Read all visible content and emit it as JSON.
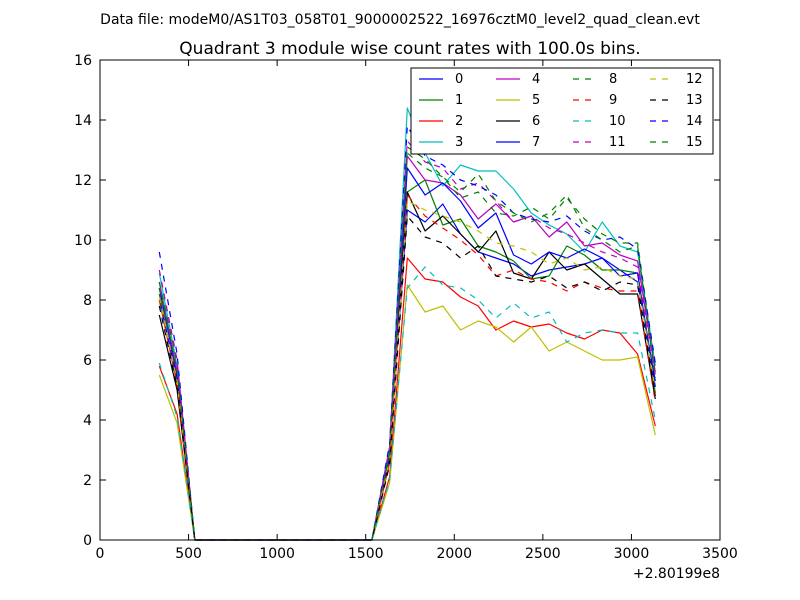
{
  "chart_data": {
    "type": "line",
    "suptitle": "Data file: modeM0/AS1T03_058T01_9000002522_16976cztM0_level2_quad_clean.evt",
    "title": "Quadrant 3 module wise count rates with 100.0s bins.",
    "xlabel": "",
    "ylabel": "",
    "x_offset_label": "+2.80199e8",
    "xlim": [
      0,
      3500
    ],
    "ylim": [
      0,
      16
    ],
    "xticks": [
      0,
      500,
      1000,
      1500,
      2000,
      2500,
      3000,
      3500
    ],
    "yticks": [
      0,
      2,
      4,
      6,
      8,
      10,
      12,
      14,
      16
    ],
    "grid": false,
    "legend_position": "top-right",
    "x": [
      335,
      435,
      535,
      635,
      735,
      835,
      935,
      1035,
      1135,
      1235,
      1335,
      1435,
      1535,
      1635,
      1735,
      1835,
      1935,
      2035,
      2135,
      2235,
      2335,
      2435,
      2535,
      2635,
      2735,
      2835,
      2935,
      3035,
      3135
    ],
    "series": [
      {
        "name": "0",
        "color": "#0000ff",
        "style": "solid",
        "values": [
          8.4,
          5.5,
          0,
          0,
          0,
          0,
          0,
          0,
          0,
          0,
          0,
          0,
          0,
          2.8,
          11.0,
          10.6,
          11.2,
          10.2,
          9.6,
          9.4,
          9.2,
          8.8,
          9.0,
          9.1,
          9.2,
          9.4,
          9.0,
          8.6,
          5.3
        ]
      },
      {
        "name": "1",
        "color": "#008000",
        "style": "solid",
        "values": [
          8.2,
          5.2,
          0,
          0,
          0,
          0,
          0,
          0,
          0,
          0,
          0,
          0,
          0,
          2.7,
          11.6,
          12.0,
          10.5,
          10.7,
          9.8,
          9.6,
          9.3,
          8.7,
          8.8,
          9.8,
          9.5,
          9.0,
          9.0,
          8.9,
          4.9
        ]
      },
      {
        "name": "2",
        "color": "#ff0000",
        "style": "solid",
        "values": [
          5.8,
          4.2,
          0,
          0,
          0,
          0,
          0,
          0,
          0,
          0,
          0,
          0,
          0,
          2.1,
          9.4,
          8.7,
          8.6,
          8.1,
          7.8,
          7.0,
          7.3,
          7.1,
          7.2,
          6.9,
          6.7,
          7.0,
          6.9,
          6.2,
          3.8
        ]
      },
      {
        "name": "3",
        "color": "#00bfbf",
        "style": "solid",
        "values": [
          8.9,
          5.8,
          0,
          0,
          0,
          0,
          0,
          0,
          0,
          0,
          0,
          0,
          0,
          3.1,
          14.4,
          12.9,
          11.8,
          12.5,
          12.3,
          12.3,
          11.7,
          10.9,
          10.5,
          10.2,
          9.6,
          10.6,
          9.8,
          9.6,
          5.8
        ]
      },
      {
        "name": "4",
        "color": "#bf00bf",
        "style": "solid",
        "values": [
          8.6,
          5.6,
          0,
          0,
          0,
          0,
          0,
          0,
          0,
          0,
          0,
          0,
          0,
          2.9,
          12.8,
          12.0,
          11.9,
          11.5,
          10.7,
          11.2,
          10.6,
          10.8,
          10.1,
          10.6,
          9.8,
          9.9,
          9.5,
          9.3,
          5.6
        ]
      },
      {
        "name": "5",
        "color": "#bfbf00",
        "style": "solid",
        "values": [
          5.5,
          3.9,
          0,
          0,
          0,
          0,
          0,
          0,
          0,
          0,
          0,
          0,
          0,
          1.9,
          8.5,
          7.6,
          7.8,
          7.0,
          7.3,
          7.1,
          6.6,
          7.1,
          6.3,
          6.6,
          6.3,
          6.0,
          6.0,
          6.1,
          3.5
        ]
      },
      {
        "name": "6",
        "color": "#000000",
        "style": "solid",
        "values": [
          7.5,
          5.0,
          0,
          0,
          0,
          0,
          0,
          0,
          0,
          0,
          0,
          0,
          0,
          2.6,
          11.6,
          10.3,
          10.8,
          10.2,
          9.6,
          10.3,
          8.9,
          8.7,
          9.6,
          9.0,
          9.2,
          8.7,
          8.2,
          8.2,
          4.7
        ]
      },
      {
        "name": "7",
        "color": "#0000ff",
        "style": "solid",
        "values": [
          8.0,
          5.4,
          0,
          0,
          0,
          0,
          0,
          0,
          0,
          0,
          0,
          0,
          0,
          2.8,
          12.4,
          11.5,
          11.9,
          11.3,
          10.4,
          10.9,
          9.5,
          9.2,
          9.6,
          9.4,
          9.7,
          9.4,
          8.8,
          8.9,
          5.1
        ]
      },
      {
        "name": "8",
        "color": "#008000",
        "style": "dashed",
        "values": [
          8.6,
          5.9,
          0,
          0,
          0,
          0,
          0,
          0,
          0,
          0,
          0,
          0,
          0,
          3.0,
          12.9,
          12.4,
          12.1,
          11.4,
          11.6,
          10.9,
          10.8,
          11.1,
          10.7,
          11.4,
          10.7,
          10.2,
          9.9,
          9.9,
          5.7
        ]
      },
      {
        "name": "9",
        "color": "#ff0000",
        "style": "dashed",
        "values": [
          8.0,
          5.2,
          0,
          0,
          0,
          0,
          0,
          0,
          0,
          0,
          0,
          0,
          0,
          2.6,
          11.5,
          10.8,
          10.4,
          10.0,
          9.5,
          8.8,
          9.0,
          8.7,
          8.6,
          8.3,
          8.6,
          8.4,
          8.3,
          8.3,
          4.6
        ]
      },
      {
        "name": "10",
        "color": "#00bfbf",
        "style": "dashed",
        "values": [
          5.9,
          4.1,
          0,
          0,
          0,
          0,
          0,
          0,
          0,
          0,
          0,
          0,
          0,
          2.0,
          8.4,
          9.1,
          8.5,
          8.4,
          8.0,
          7.4,
          7.9,
          7.4,
          7.6,
          6.6,
          6.9,
          7.0,
          6.9,
          6.9,
          4.0
        ]
      },
      {
        "name": "11",
        "color": "#bf00bf",
        "style": "dashed",
        "values": [
          9.0,
          6.0,
          0,
          0,
          0,
          0,
          0,
          0,
          0,
          0,
          0,
          0,
          0,
          3.1,
          13.3,
          12.6,
          12.4,
          11.7,
          11.9,
          11.3,
          10.6,
          10.8,
          10.4,
          10.2,
          9.9,
          9.6,
          9.4,
          9.1,
          5.5
        ]
      },
      {
        "name": "12",
        "color": "#bfbf00",
        "style": "dashed",
        "values": [
          8.1,
          5.3,
          0,
          0,
          0,
          0,
          0,
          0,
          0,
          0,
          0,
          0,
          0,
          2.7,
          11.3,
          11.0,
          10.8,
          10.6,
          10.3,
          9.9,
          9.8,
          9.6,
          9.2,
          9.4,
          9.0,
          9.1,
          8.8,
          8.7,
          5.0
        ]
      },
      {
        "name": "13",
        "color": "#000000",
        "style": "dashed",
        "values": [
          7.8,
          5.1,
          0,
          0,
          0,
          0,
          0,
          0,
          0,
          0,
          0,
          0,
          0,
          2.5,
          10.8,
          10.1,
          9.9,
          9.4,
          9.8,
          8.8,
          8.7,
          8.6,
          8.8,
          8.4,
          8.6,
          8.3,
          8.6,
          8.5,
          4.8
        ]
      },
      {
        "name": "14",
        "color": "#0000ff",
        "style": "dashed",
        "values": [
          9.6,
          6.2,
          0,
          0,
          0,
          0,
          0,
          0,
          0,
          0,
          0,
          0,
          0,
          3.2,
          13.8,
          12.8,
          12.5,
          12.0,
          11.8,
          11.5,
          10.9,
          10.7,
          10.6,
          10.8,
          10.3,
          10.0,
          10.1,
          9.7,
          5.9
        ]
      },
      {
        "name": "15",
        "color": "#008000",
        "style": "dashed",
        "values": [
          8.4,
          5.7,
          0,
          0,
          0,
          0,
          0,
          0,
          0,
          0,
          0,
          0,
          0,
          2.9,
          13.1,
          12.7,
          12.1,
          11.6,
          12.2,
          11.3,
          10.9,
          10.6,
          10.9,
          11.5,
          10.4,
          10.0,
          9.6,
          9.8,
          5.4
        ]
      }
    ]
  }
}
